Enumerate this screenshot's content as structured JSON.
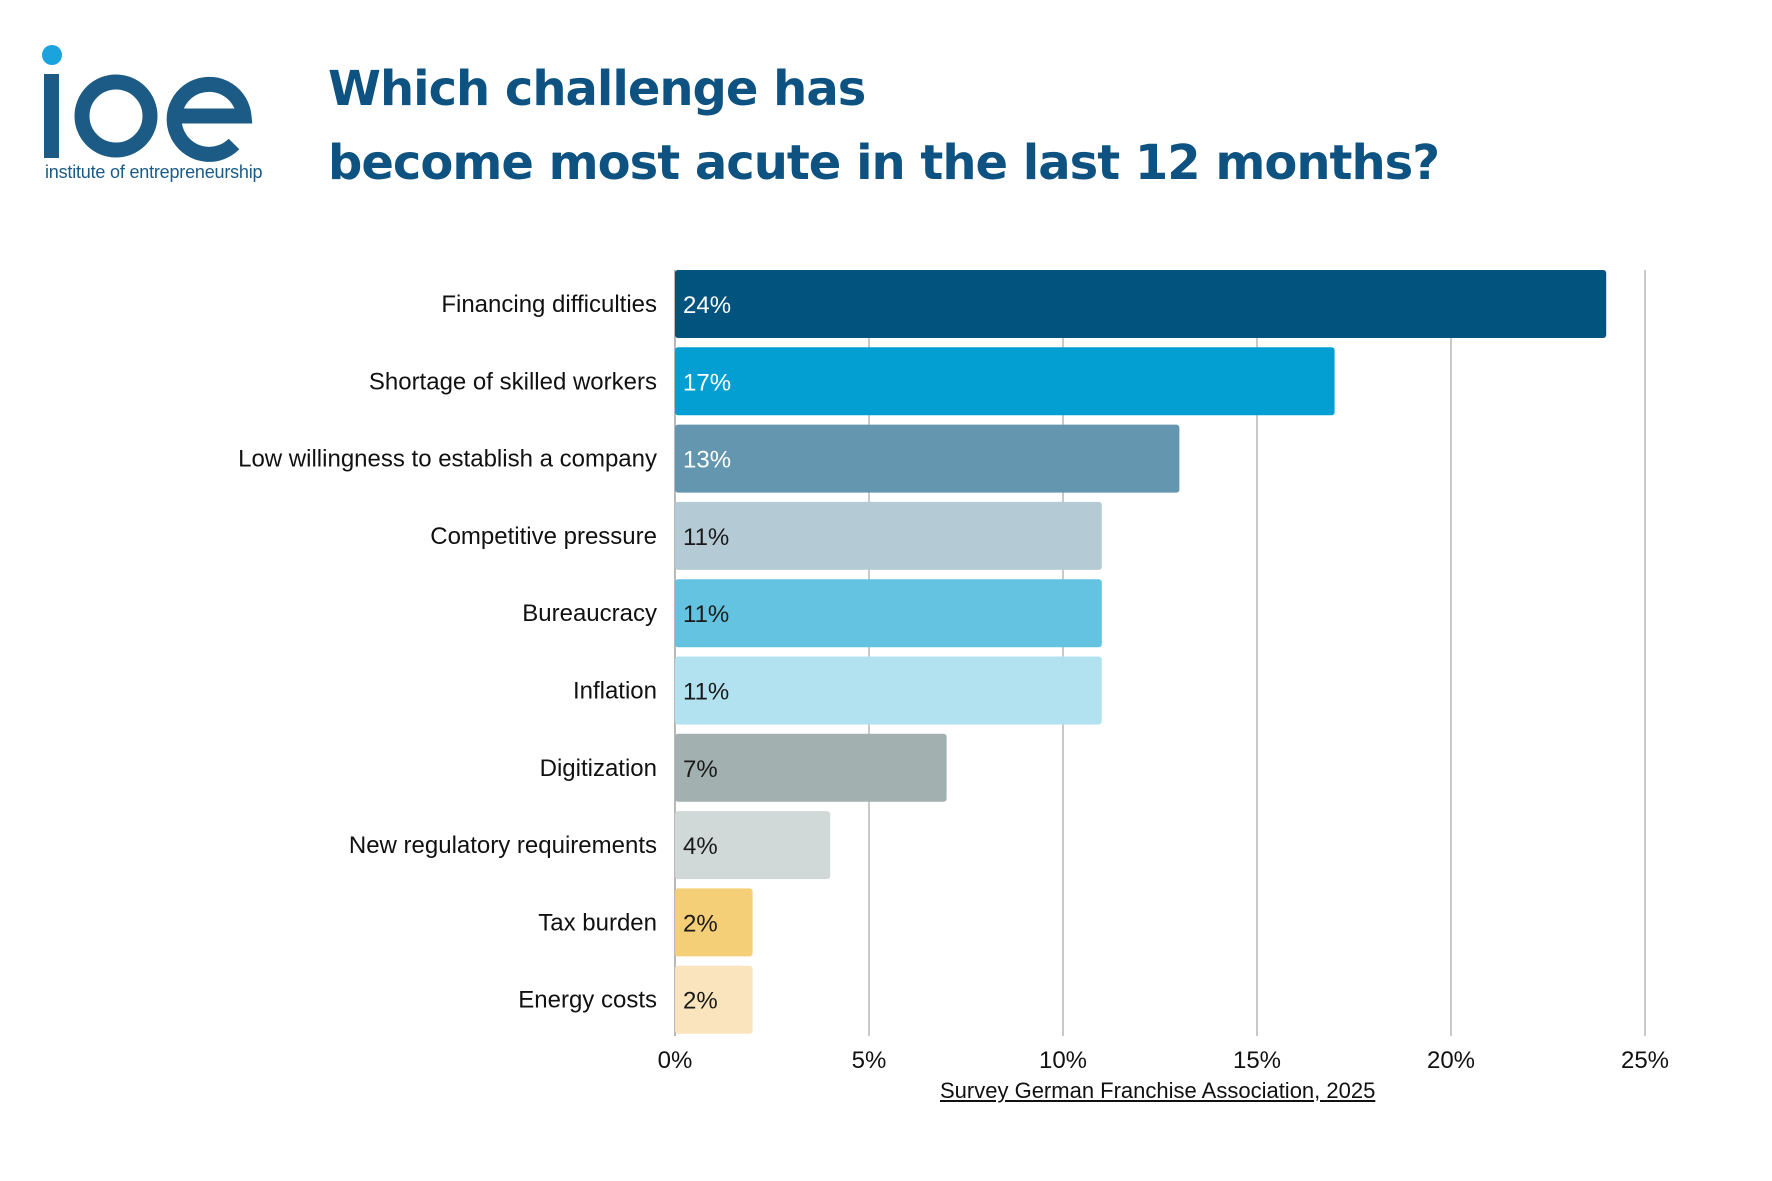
{
  "brand": {
    "logo_text": "ioe",
    "tagline": "institute of entrepreneurship",
    "accent_color": "#1aa3dc",
    "primary_color": "#0d5280"
  },
  "title_lines": [
    "Which challenge has",
    "become most acute in the last 12 months?"
  ],
  "source": "Survey German Franchise Association, 2025",
  "chart_data": {
    "type": "bar",
    "orientation": "horizontal",
    "title": "Which challenge has become most acute in the last 12 months?",
    "xlabel": "",
    "ylabel": "",
    "xlim": [
      0,
      25
    ],
    "grid": true,
    "legend": "none",
    "ticks": [
      "0%",
      "5%",
      "10%",
      "15%",
      "20%",
      "25%"
    ],
    "tick_values": [
      0,
      5,
      10,
      15,
      20,
      25
    ],
    "categories": [
      "Financing difficulties",
      "Shortage of skilled workers",
      "Low willingness to establish a company",
      "Competitive pressure",
      "Bureaucracy",
      "Inflation",
      "Digitization",
      "New regulatory requirements",
      "Tax burden",
      "Energy costs"
    ],
    "values": [
      24,
      17,
      13,
      11,
      11,
      11,
      7,
      4,
      2,
      2
    ],
    "value_labels": [
      "24%",
      "17%",
      "13%",
      "11%",
      "11%",
      "11%",
      "7%",
      "4%",
      "2%",
      "2%"
    ],
    "colors": [
      "#02537e",
      "#039fd2",
      "#6596b0",
      "#b4cbd6",
      "#63c3e0",
      "#b2e2ef",
      "#a2b1af",
      "#d1d9d8",
      "#f5cf78",
      "#fae4bd"
    ],
    "label_colors": [
      "#ffffff",
      "#ffffff",
      "#ffffff",
      "#1a1a1a",
      "#1a1a1a",
      "#1a1a1a",
      "#1a1a1a",
      "#1a1a1a",
      "#1a1a1a",
      "#1a1a1a"
    ]
  }
}
